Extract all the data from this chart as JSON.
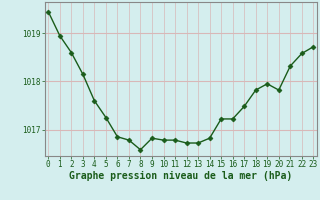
{
  "x": [
    0,
    1,
    2,
    3,
    4,
    5,
    6,
    7,
    8,
    9,
    10,
    11,
    12,
    13,
    14,
    15,
    16,
    17,
    18,
    19,
    20,
    21,
    22,
    23
  ],
  "y": [
    1019.45,
    1018.95,
    1018.6,
    1018.15,
    1017.6,
    1017.25,
    1016.85,
    1016.78,
    1016.58,
    1016.82,
    1016.78,
    1016.78,
    1016.72,
    1016.72,
    1016.82,
    1017.22,
    1017.22,
    1017.48,
    1017.82,
    1017.95,
    1017.82,
    1018.32,
    1018.58,
    1018.72
  ],
  "line_color": "#1a5c1a",
  "marker": "D",
  "marker_size": 2.5,
  "bg_color": "#d4eeee",
  "grid_color": "#b8d8d8",
  "grid_major_color": "#c8c8c8",
  "xlabel": "Graphe pression niveau de la mer (hPa)",
  "xlabel_fontsize": 7,
  "yticks": [
    1017,
    1018,
    1019
  ],
  "xticks": [
    0,
    1,
    2,
    3,
    4,
    5,
    6,
    7,
    8,
    9,
    10,
    11,
    12,
    13,
    14,
    15,
    16,
    17,
    18,
    19,
    20,
    21,
    22,
    23
  ],
  "ylim": [
    1016.45,
    1019.65
  ],
  "xlim": [
    -0.3,
    23.3
  ],
  "tick_fontsize": 5.5,
  "border_color": "#888888",
  "line_width": 1.0
}
